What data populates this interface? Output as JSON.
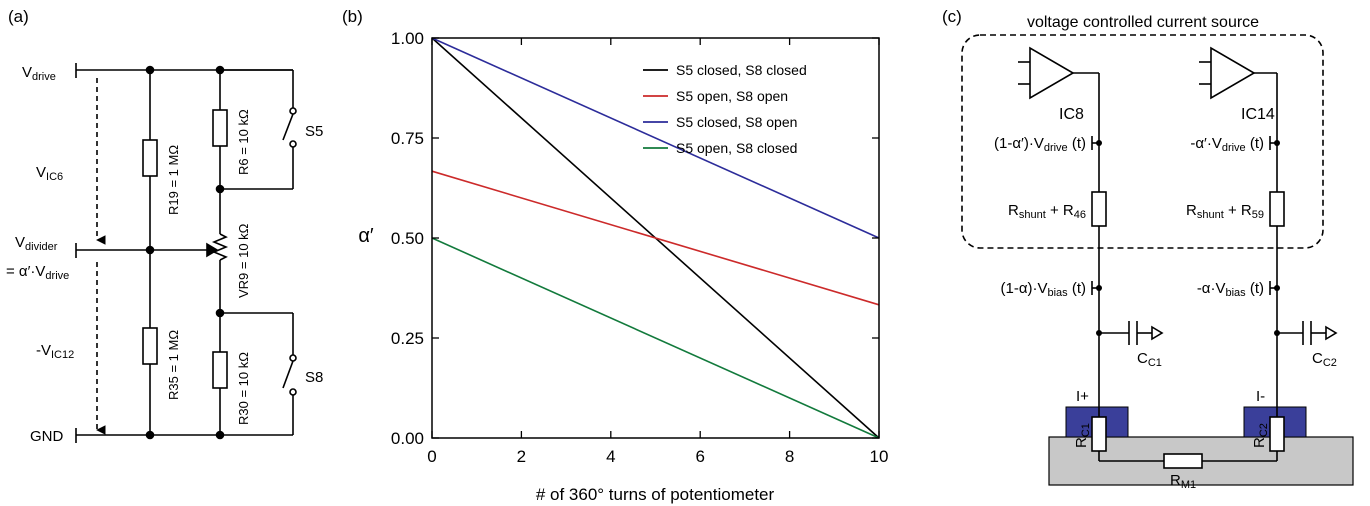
{
  "panels": {
    "a": {
      "label": "(a)",
      "nodes": {
        "vdrive_main": "V",
        "vdrive_sub": "drive",
        "vic6_main": "V",
        "vic6_sub": "IC6",
        "vdivider_main": "V",
        "vdivider_sub": "divider",
        "eq_prefix": "= α′·V",
        "eq_sub": "drive",
        "vic12_main": "-V",
        "vic12_sub": "IC12",
        "gnd": "GND"
      },
      "components": {
        "r19": "R19 = 1 MΩ",
        "r35": "R35 = 1 MΩ",
        "r6": "R6 = 10 kΩ",
        "vr9": "VR9 = 10 kΩ",
        "r30": "R30 = 10 kΩ",
        "s5": "S5",
        "s8": "S8"
      }
    },
    "b": {
      "label": "(b)"
    },
    "c": {
      "label": "(c)",
      "box_title": "voltage controlled current source",
      "ic8": "IC8",
      "ic14": "IC14",
      "left_drive_pre": "(1-α′)·V",
      "left_drive_sub": "drive",
      "left_drive_post": " (t)",
      "right_drive_pre": "-α′·V",
      "right_drive_sub": "drive",
      "right_drive_post": " (t)",
      "left_shunt_pre": "R",
      "left_shunt_sub": "shunt",
      "left_shunt_mid": " + R",
      "left_shunt_sub2": "46",
      "right_shunt_pre": "R",
      "right_shunt_sub": "shunt",
      "right_shunt_mid": " + R",
      "right_shunt_sub2": "59",
      "left_bias_pre": "(1-α)·V",
      "left_bias_sub": "bias",
      "left_bias_post": " (t)",
      "right_bias_pre": "-α·V",
      "right_bias_sub": "bias",
      "right_bias_post": " (t)",
      "cc1_main": "C",
      "cc1_sub": "C1",
      "cc2_main": "C",
      "cc2_sub": "C2",
      "iplus": "I+",
      "iminus": "I-",
      "rc1_main": "R",
      "rc1_sub": "C1",
      "rc2_main": "R",
      "rc2_sub": "C2",
      "rm1_main": "R",
      "rm1_sub": "M1",
      "colors": {
        "contact": "#3a3f9a",
        "substrate": "#c8c8c8"
      }
    }
  },
  "chart_data": {
    "type": "line",
    "xlabel": "# of 360° turns of potentiometer",
    "ylabel": "α′",
    "xlim": [
      0,
      10
    ],
    "ylim": [
      0,
      1
    ],
    "xticks": [
      "0",
      "2",
      "4",
      "6",
      "8",
      "10"
    ],
    "xtick_values": [
      0,
      2,
      4,
      6,
      8,
      10
    ],
    "yticks": [
      "0.00",
      "0.25",
      "0.50",
      "0.75",
      "1.00"
    ],
    "ytick_values": [
      0,
      0.25,
      0.5,
      0.75,
      1.0
    ],
    "legend_position": "top-right",
    "series": [
      {
        "name": "S5 closed, S8 closed",
        "color": "#000000",
        "x": [
          0,
          10
        ],
        "y": [
          1.0,
          0.0
        ]
      },
      {
        "name": "S5 open, S8 open",
        "color": "#cc2a2a",
        "x": [
          0,
          10
        ],
        "y": [
          0.667,
          0.333
        ]
      },
      {
        "name": "S5 closed, S8 open",
        "color": "#2c2c9a",
        "x": [
          0,
          10
        ],
        "y": [
          1.0,
          0.5
        ]
      },
      {
        "name": "S5 open, S8 closed",
        "color": "#127a3c",
        "x": [
          0,
          10
        ],
        "y": [
          0.5,
          0.0
        ]
      }
    ]
  }
}
